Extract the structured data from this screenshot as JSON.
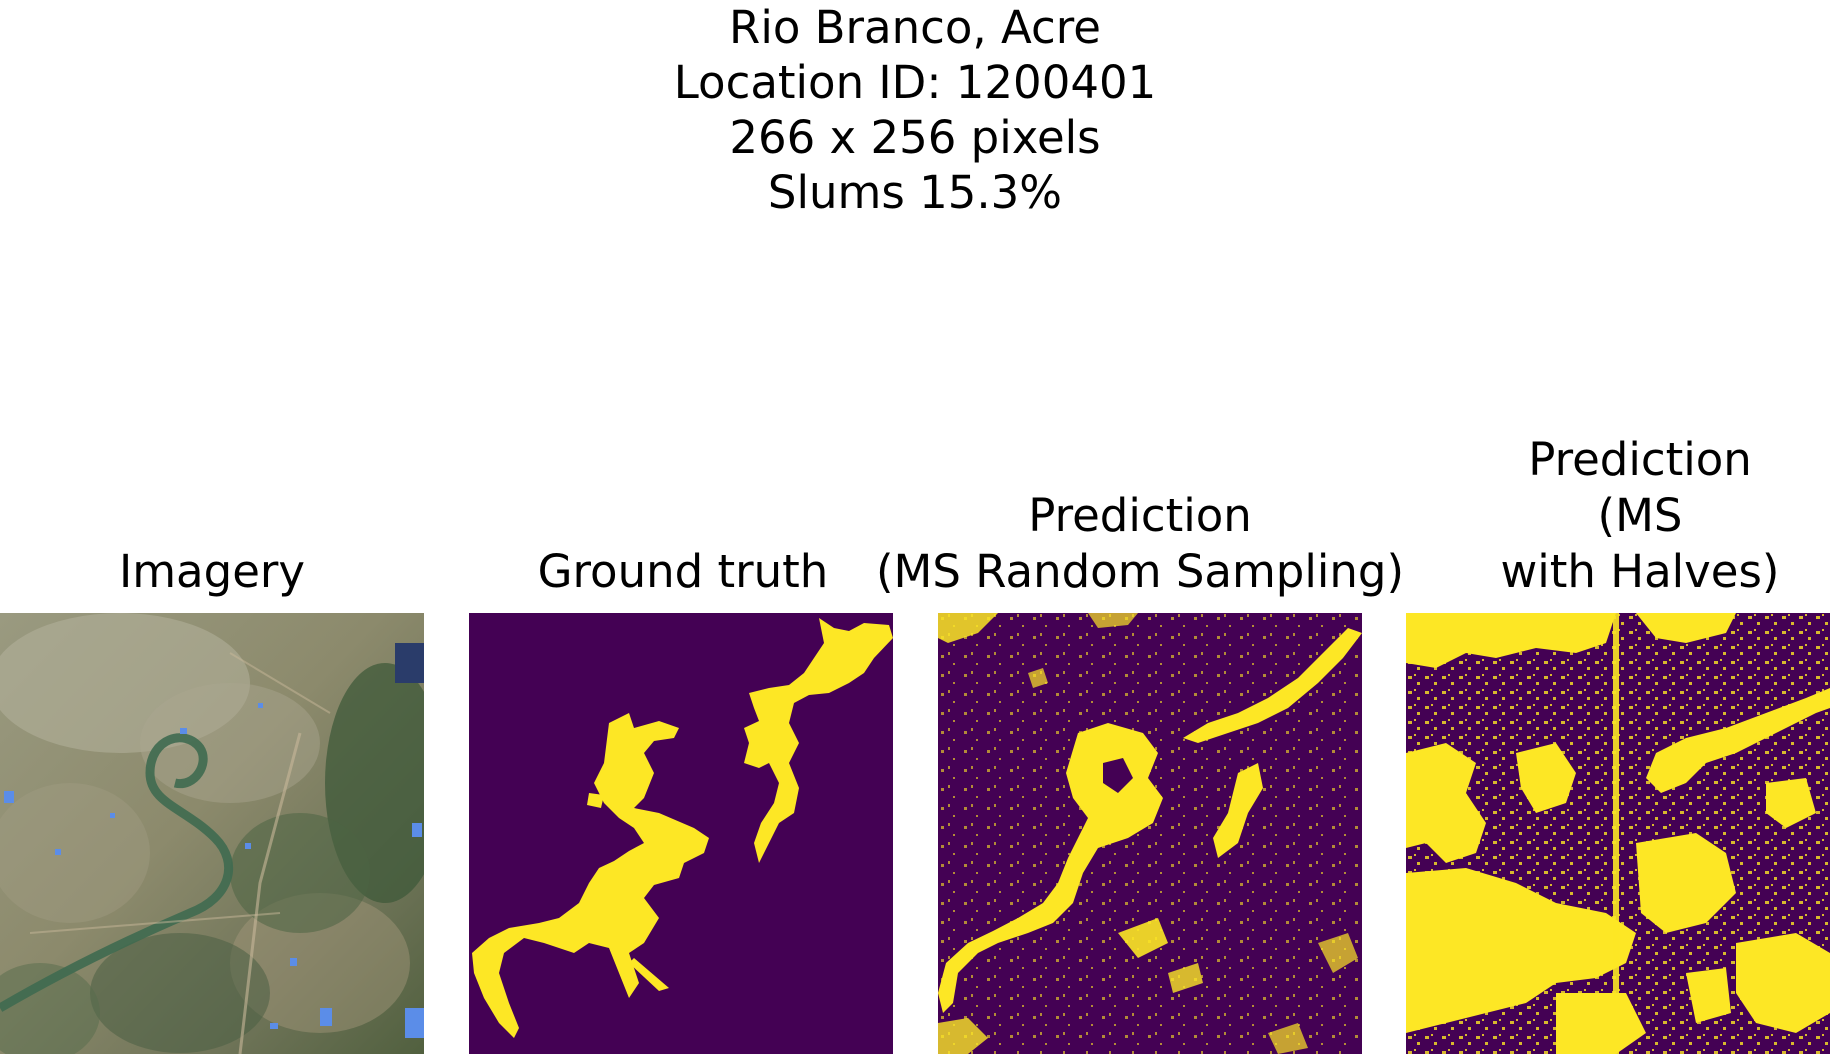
{
  "figure": {
    "title_lines": [
      "Rio Branco, Acre",
      "Location ID: 1200401",
      "266 x 256 pixels",
      "Slums 15.3%"
    ]
  },
  "panels": [
    {
      "id": "imagery",
      "title_lines": [
        "Imagery"
      ]
    },
    {
      "id": "ground-truth",
      "title_lines": [
        "Ground truth"
      ]
    },
    {
      "id": "prediction-random",
      "title_lines": [
        "Prediction",
        "(MS Random Sampling)"
      ]
    },
    {
      "id": "prediction-halves",
      "title_lines": [
        "Prediction",
        "(MS",
        "with Halves)"
      ]
    }
  ],
  "colors": {
    "background_class": "#440154",
    "slum_class": "#fde725",
    "imagery_base": "#8a8a6a",
    "imagery_water": "#5b8de8",
    "imagery_vegetation": "#3f5a3a"
  }
}
